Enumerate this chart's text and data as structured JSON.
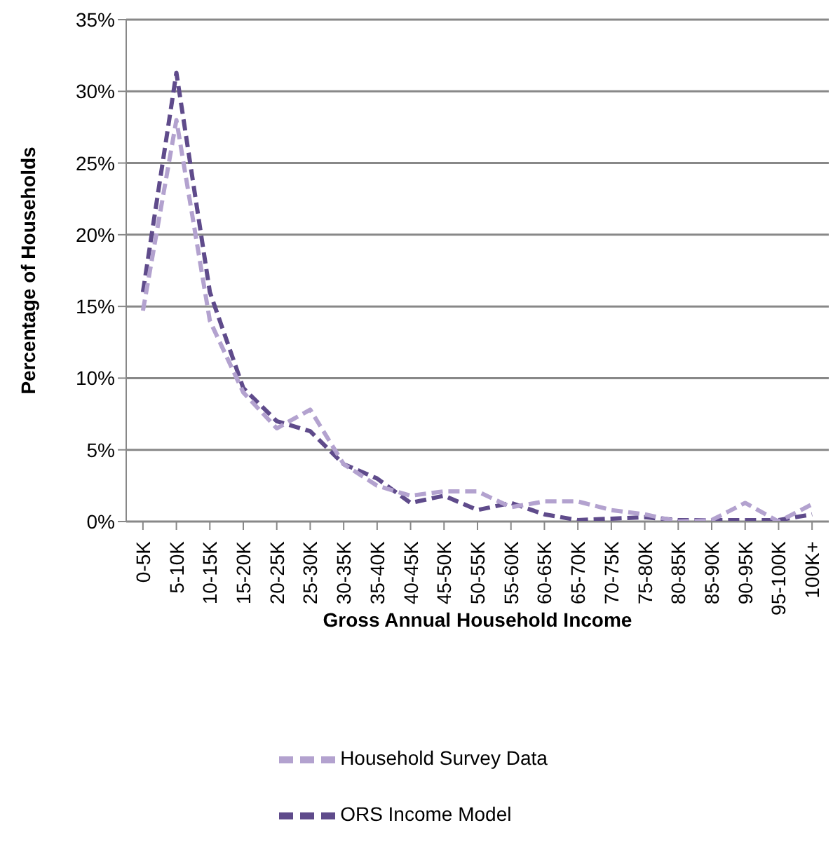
{
  "chart_data": {
    "type": "line",
    "xlabel": "Gross Annual Household Income",
    "ylabel": "Percentage of Households",
    "categories": [
      "0-5K",
      "5-10K",
      "10-15K",
      "15-20K",
      "20-25K",
      "25-30K",
      "30-35K",
      "35-40K",
      "40-45K",
      "45-50K",
      "50-55K",
      "55-60K",
      "60-65K",
      "65-70K",
      "70-75K",
      "75-80K",
      "80-85K",
      "85-90K",
      "90-95K",
      "95-100K",
      "100K+"
    ],
    "series": [
      {
        "name": "ORS Income Model",
        "color": "#5f4b8b",
        "values": [
          16,
          31.3,
          16,
          9.3,
          7,
          6.3,
          4,
          3,
          1.3,
          1.8,
          0.8,
          1.3,
          0.5,
          0.1,
          0.2,
          0.3,
          0.1,
          0.1,
          0.1,
          0.1,
          0.5
        ]
      },
      {
        "name": "Household Survey Data",
        "color": "#b3a2cf",
        "values": [
          14.7,
          28,
          14,
          9,
          6.5,
          7.8,
          4,
          2.5,
          1.8,
          2.1,
          2.1,
          1,
          1.4,
          1.4,
          0.8,
          0.5,
          0,
          0.1,
          1.3,
          0,
          1.2
        ]
      }
    ],
    "ylim": [
      0,
      35
    ],
    "yticks": [
      {
        "value": 0,
        "label": "0%"
      },
      {
        "value": 5,
        "label": "5%"
      },
      {
        "value": 10,
        "label": "10%"
      },
      {
        "value": 15,
        "label": "15%"
      },
      {
        "value": 20,
        "label": "20%"
      },
      {
        "value": 25,
        "label": "25%"
      },
      {
        "value": 30,
        "label": "30%"
      },
      {
        "value": 35,
        "label": "35%"
      }
    ],
    "grid": "y",
    "legend": "bottom",
    "line_style": "dashed",
    "marker": "none"
  }
}
